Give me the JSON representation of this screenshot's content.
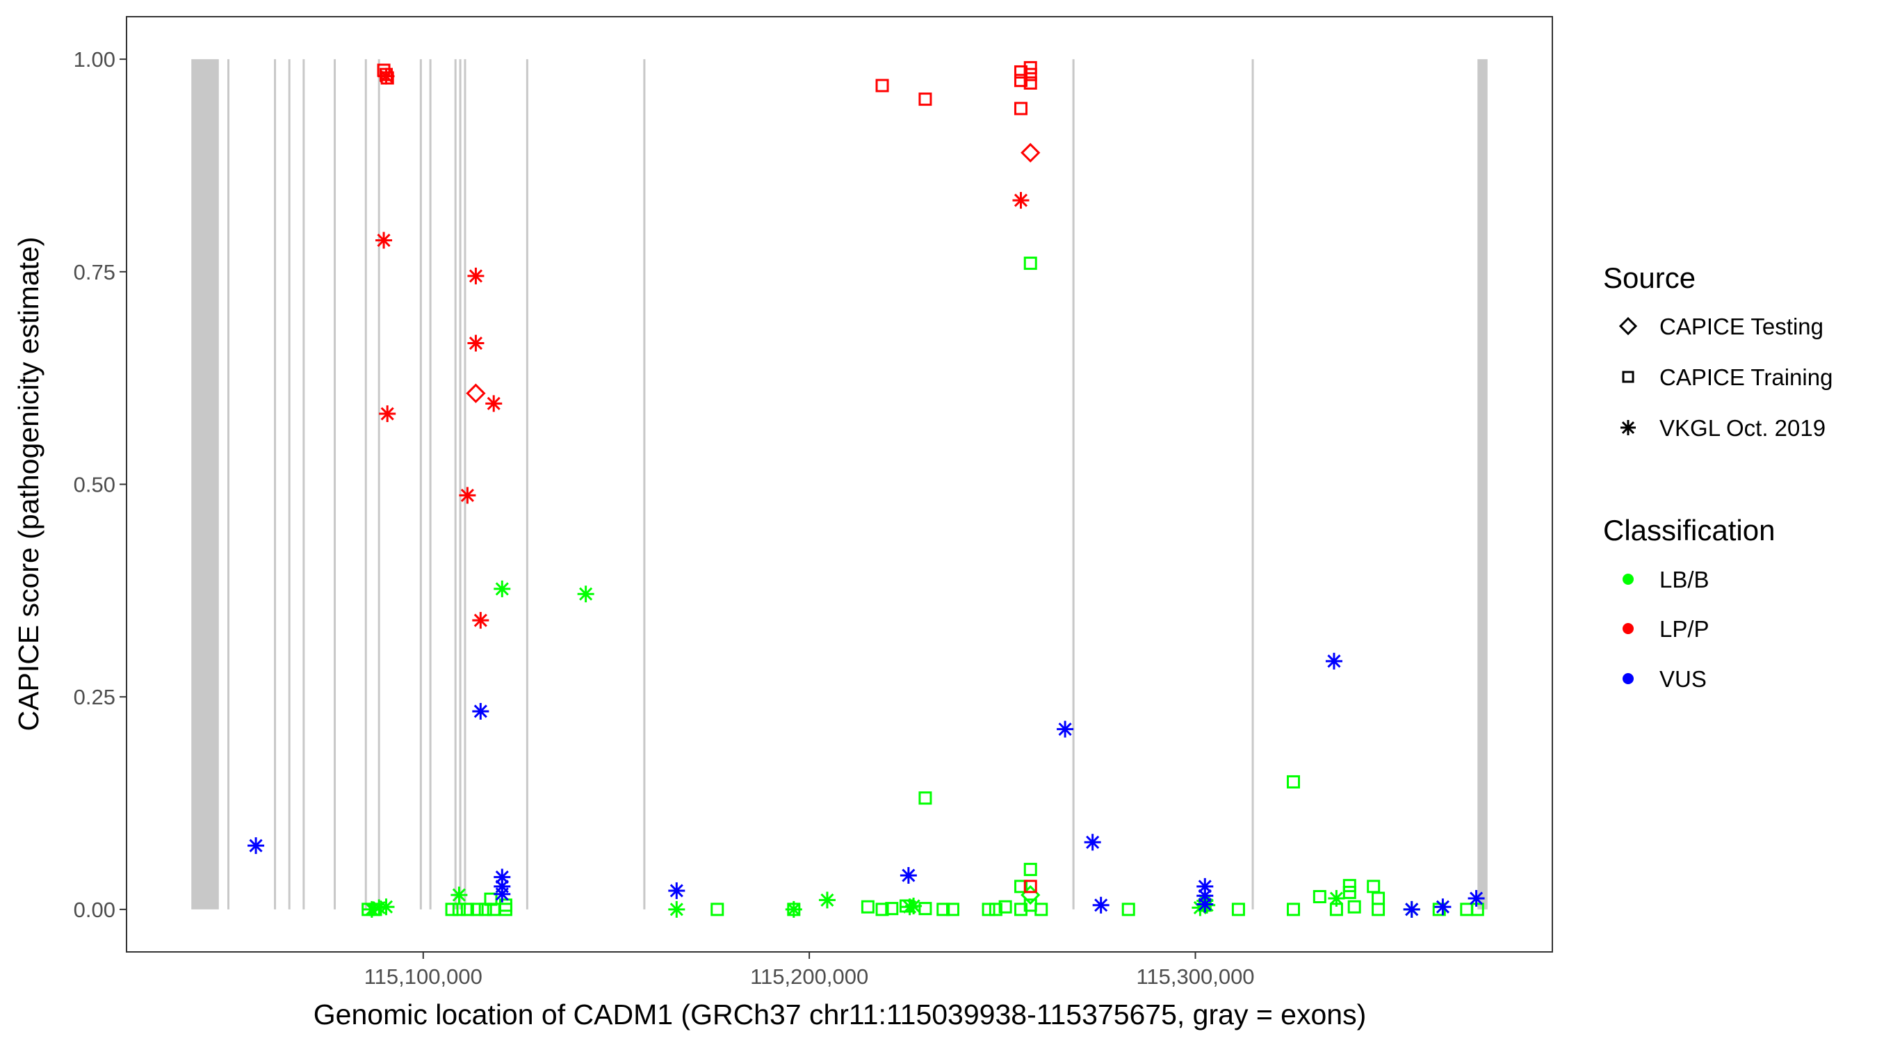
{
  "chart_data": {
    "type": "scatter",
    "xlabel": "Genomic location of CADM1 (GRCh37 chr11:115039938-115375675, gray = exons)",
    "ylabel": "CAPICE score (pathogenicity estimate)",
    "xlim": [
      115023151,
      115392462
    ],
    "ylim": [
      -0.05,
      1.05
    ],
    "x_ticks": [
      115100000,
      115200000,
      115300000
    ],
    "x_tick_labels": [
      "115,100,000",
      "115,200,000",
      "115,300,000"
    ],
    "y_ticks": [
      0,
      0.25,
      0.5,
      0.75,
      1.0
    ],
    "y_tick_labels": [
      "0.00",
      "0.25",
      "0.50",
      "0.75",
      "1.00"
    ],
    "grid": false,
    "legend_placement": "right",
    "legends": {
      "source": {
        "title": "Source",
        "items": [
          {
            "label": "CAPICE Testing",
            "shape": "diamond"
          },
          {
            "label": "CAPICE Training",
            "shape": "square"
          },
          {
            "label": "VKGL Oct. 2019",
            "shape": "asterisk"
          }
        ]
      },
      "classification": {
        "title": "Classification",
        "items": [
          {
            "label": "LB/B",
            "color": "#00ff00"
          },
          {
            "label": "LP/P",
            "color": "#ff0000"
          },
          {
            "label": "VUS",
            "color": "#0000ff"
          }
        ]
      }
    },
    "exon_color": "#c8c8c8",
    "exons": [
      [
        115039938,
        115047058
      ],
      [
        115049535,
        115049535
      ],
      [
        115061610,
        115061610
      ],
      [
        115065325,
        115065325
      ],
      [
        115069040,
        115069040
      ],
      [
        115077090,
        115077090
      ],
      [
        115085139,
        115085139
      ],
      [
        115088545,
        115088545
      ],
      [
        115099381,
        115099381
      ],
      [
        115101858,
        115101858
      ],
      [
        115108359,
        115108359
      ],
      [
        115109598,
        115109598
      ],
      [
        115110836,
        115110836
      ],
      [
        115126935,
        115126935
      ],
      [
        115157276,
        115157276
      ],
      [
        115268422,
        115268422
      ],
      [
        115314862,
        115314862
      ],
      [
        115373067,
        115375675
      ]
    ],
    "point_fields": [
      "x",
      "y",
      "source_index",
      "classification_index"
    ],
    "points": [
      [
        115120434,
        0.377,
        2,
        0
      ],
      [
        115142106,
        0.371,
        2,
        0
      ],
      [
        115086687,
        0,
        2,
        0
      ],
      [
        115088545,
        0.002,
        2,
        0
      ],
      [
        115090402,
        0.003,
        2,
        0
      ],
      [
        115109288,
        0.017,
        2,
        0
      ],
      [
        115165635,
        0,
        2,
        0
      ],
      [
        115195976,
        0,
        2,
        0
      ],
      [
        115204645,
        0.011,
        2,
        0
      ],
      [
        115226007,
        0.003,
        2,
        0
      ],
      [
        115227000,
        0.004,
        2,
        0
      ],
      [
        115301240,
        0.002,
        2,
        0
      ],
      [
        115302478,
        0.01,
        2,
        0
      ],
      [
        115303000,
        0.005,
        2,
        0
      ],
      [
        115336534,
        0.013,
        2,
        0
      ],
      [
        115356039,
        0,
        2,
        0
      ],
      [
        115257277,
        0.76,
        1,
        0
      ],
      [
        115230032,
        0.131,
        1,
        0
      ],
      [
        115325389,
        0.15,
        1,
        0
      ],
      [
        115257277,
        0.047,
        1,
        0
      ],
      [
        115254800,
        0.027,
        1,
        0
      ],
      [
        115085758,
        0,
        1,
        0
      ],
      [
        115087616,
        0,
        1,
        0
      ],
      [
        115107430,
        0,
        1,
        0
      ],
      [
        115109288,
        0,
        1,
        0
      ],
      [
        115111455,
        0,
        1,
        0
      ],
      [
        115113932,
        0,
        1,
        0
      ],
      [
        115116099,
        0,
        1,
        0
      ],
      [
        115118266,
        0,
        1,
        0
      ],
      [
        115121362,
        0,
        1,
        0
      ],
      [
        115117500,
        0.012,
        1,
        0
      ],
      [
        115121362,
        0.005,
        1,
        0
      ],
      [
        115176162,
        0,
        1,
        0
      ],
      [
        115195976,
        0,
        1,
        0
      ],
      [
        115215171,
        0.003,
        1,
        0
      ],
      [
        115218886,
        0,
        1,
        0
      ],
      [
        115221363,
        0.001,
        1,
        0
      ],
      [
        115225078,
        0.004,
        1,
        0
      ],
      [
        115230032,
        0.001,
        1,
        0
      ],
      [
        115234676,
        0,
        1,
        0
      ],
      [
        115237153,
        0,
        1,
        0
      ],
      [
        115246441,
        0,
        1,
        0
      ],
      [
        115248298,
        0,
        1,
        0
      ],
      [
        115250775,
        0.003,
        1,
        0
      ],
      [
        115254800,
        0,
        1,
        0
      ],
      [
        115257277,
        0.005,
        1,
        0
      ],
      [
        115260063,
        0,
        1,
        0
      ],
      [
        115282664,
        0,
        1,
        0
      ],
      [
        115302478,
        0.005,
        1,
        0
      ],
      [
        115311147,
        0,
        1,
        0
      ],
      [
        115325389,
        0,
        1,
        0
      ],
      [
        115332200,
        0.015,
        1,
        0
      ],
      [
        115336534,
        0,
        1,
        0
      ],
      [
        115339940,
        0.028,
        1,
        0
      ],
      [
        115339940,
        0.02,
        1,
        0
      ],
      [
        115341178,
        0.003,
        1,
        0
      ],
      [
        115346132,
        0.027,
        1,
        0
      ],
      [
        115347370,
        0.013,
        1,
        0
      ],
      [
        115347370,
        0,
        1,
        0
      ],
      [
        115363160,
        0,
        1,
        0
      ],
      [
        115370281,
        0,
        1,
        0
      ],
      [
        115373067,
        0,
        1,
        0
      ],
      [
        115257277,
        0.017,
        0,
        0
      ],
      [
        115089783,
        0.787,
        2,
        1
      ],
      [
        115090712,
        0.583,
        2,
        1
      ],
      [
        115113622,
        0.745,
        2,
        1
      ],
      [
        115113622,
        0.666,
        2,
        1
      ],
      [
        115118266,
        0.595,
        2,
        1
      ],
      [
        115111455,
        0.487,
        2,
        1
      ],
      [
        115114861,
        0.34,
        2,
        1
      ],
      [
        115254800,
        0.834,
        2,
        1
      ],
      [
        115090402,
        0.98,
        2,
        1
      ],
      [
        115113622,
        0.607,
        0,
        1
      ],
      [
        115257277,
        0.89,
        0,
        1
      ],
      [
        115089783,
        0.987,
        1,
        1
      ],
      [
        115090402,
        0.982,
        1,
        1
      ],
      [
        115090712,
        0.978,
        1,
        1
      ],
      [
        115218886,
        0.969,
        1,
        1
      ],
      [
        115230032,
        0.953,
        1,
        1
      ],
      [
        115254800,
        0.985,
        1,
        1
      ],
      [
        115254800,
        0.975,
        1,
        1
      ],
      [
        115257277,
        0.99,
        1,
        1
      ],
      [
        115257277,
        0.982,
        1,
        1
      ],
      [
        115257277,
        0.972,
        1,
        1
      ],
      [
        115254800,
        0.942,
        1,
        1
      ],
      [
        115257277,
        0.027,
        1,
        1
      ],
      [
        115056656,
        0.075,
        2,
        2
      ],
      [
        115114861,
        0.233,
        2,
        2
      ],
      [
        115120434,
        0.038,
        2,
        2
      ],
      [
        115120434,
        0.027,
        2,
        2
      ],
      [
        115120434,
        0.018,
        2,
        2
      ],
      [
        115165635,
        0.022,
        2,
        2
      ],
      [
        115225698,
        0.04,
        2,
        2
      ],
      [
        115266255,
        0.212,
        2,
        2
      ],
      [
        115273376,
        0.079,
        2,
        2
      ],
      [
        115275543,
        0.005,
        2,
        2
      ],
      [
        115302478,
        0.027,
        2,
        2
      ],
      [
        115302478,
        0.016,
        2,
        2
      ],
      [
        115302478,
        0.006,
        2,
        2
      ],
      [
        115335915,
        0.292,
        2,
        2
      ],
      [
        115356039,
        0,
        2,
        2
      ],
      [
        115364089,
        0.003,
        2,
        2
      ],
      [
        115372758,
        0.013,
        2,
        2
      ]
    ]
  }
}
